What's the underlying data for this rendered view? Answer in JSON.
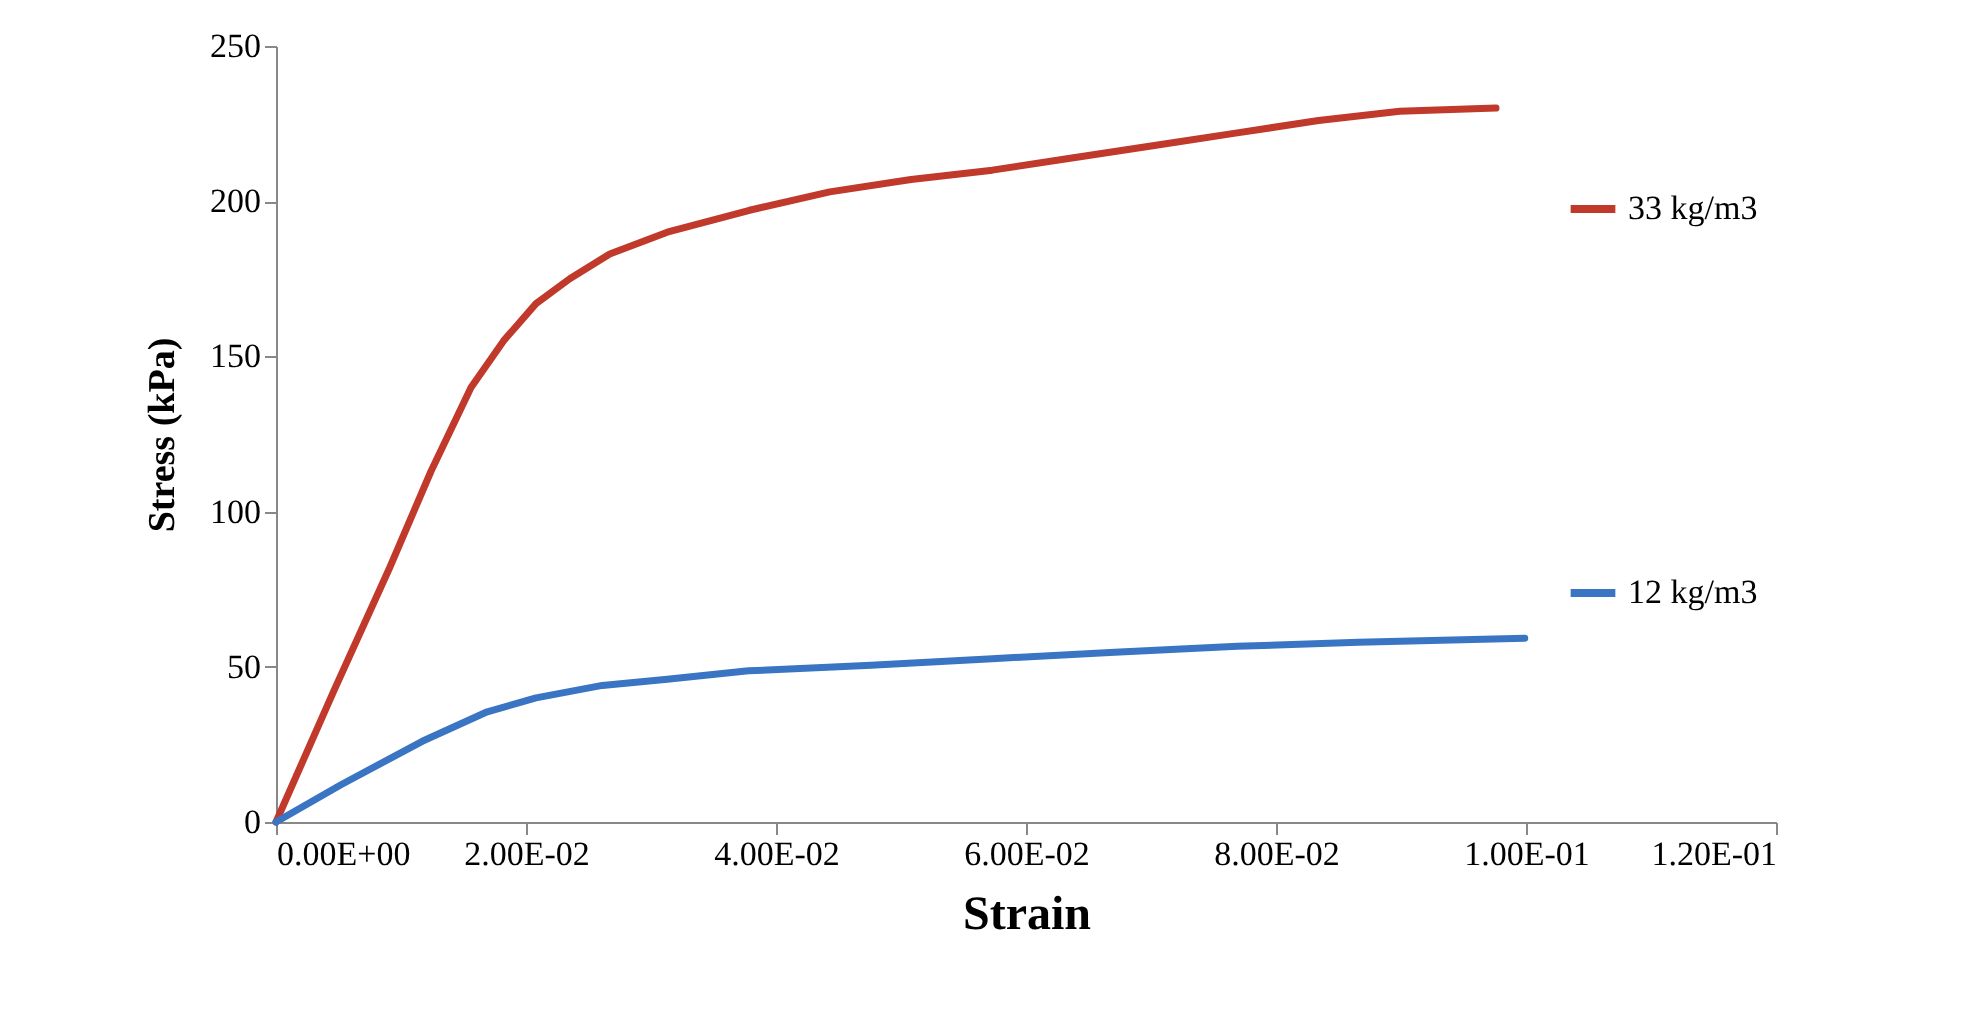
{
  "chart_data": {
    "type": "line",
    "xlabel": "Strain",
    "ylabel": "Stress (kPa)",
    "xlim": [
      0,
      0.12
    ],
    "xticks": [
      {
        "value": 0,
        "label": "0.00E+00"
      },
      {
        "value": 0.02,
        "label": "2.00E-02"
      },
      {
        "value": 0.04,
        "label": "4.00E-02"
      },
      {
        "value": 0.06,
        "label": "6.00E-02"
      },
      {
        "value": 0.08,
        "label": "8.00E-02"
      },
      {
        "value": 0.1,
        "label": "1.00E-01"
      },
      {
        "value": 0.12,
        "label": "1.20E-01"
      }
    ],
    "ylim": [
      0,
      250
    ],
    "yticks": [
      0,
      50,
      100,
      150,
      200,
      250
    ],
    "grid": false,
    "legend": "right",
    "marker": "none",
    "line_style": "solid",
    "series": [
      {
        "name": "33 kg/m3",
        "color": "#c0392b",
        "x": [
          0,
          0.0046,
          0.0091,
          0.0124,
          0.0156,
          0.0182,
          0.0208,
          0.0235,
          0.0267,
          0.0313,
          0.0378,
          0.0443,
          0.0508,
          0.0573,
          0.0638,
          0.0704,
          0.0769,
          0.0834,
          0.0899,
          0.0976
        ],
        "values": [
          0,
          42,
          82,
          113,
          140,
          155,
          167,
          175,
          183,
          190,
          197,
          203,
          207,
          210,
          214,
          218,
          222,
          226,
          229,
          230
        ]
      },
      {
        "name": "12 kg/m3",
        "color": "#3a75c4",
        "x": [
          0,
          0.0052,
          0.0117,
          0.0169,
          0.0208,
          0.0261,
          0.0313,
          0.0378,
          0.0476,
          0.0573,
          0.0671,
          0.0769,
          0.0866,
          0.0999
        ],
        "values": [
          0,
          12,
          26,
          35.5,
          40,
          44,
          46,
          48.7,
          50.5,
          52.6,
          54.7,
          56.6,
          57.9,
          59.2
        ]
      }
    ]
  }
}
